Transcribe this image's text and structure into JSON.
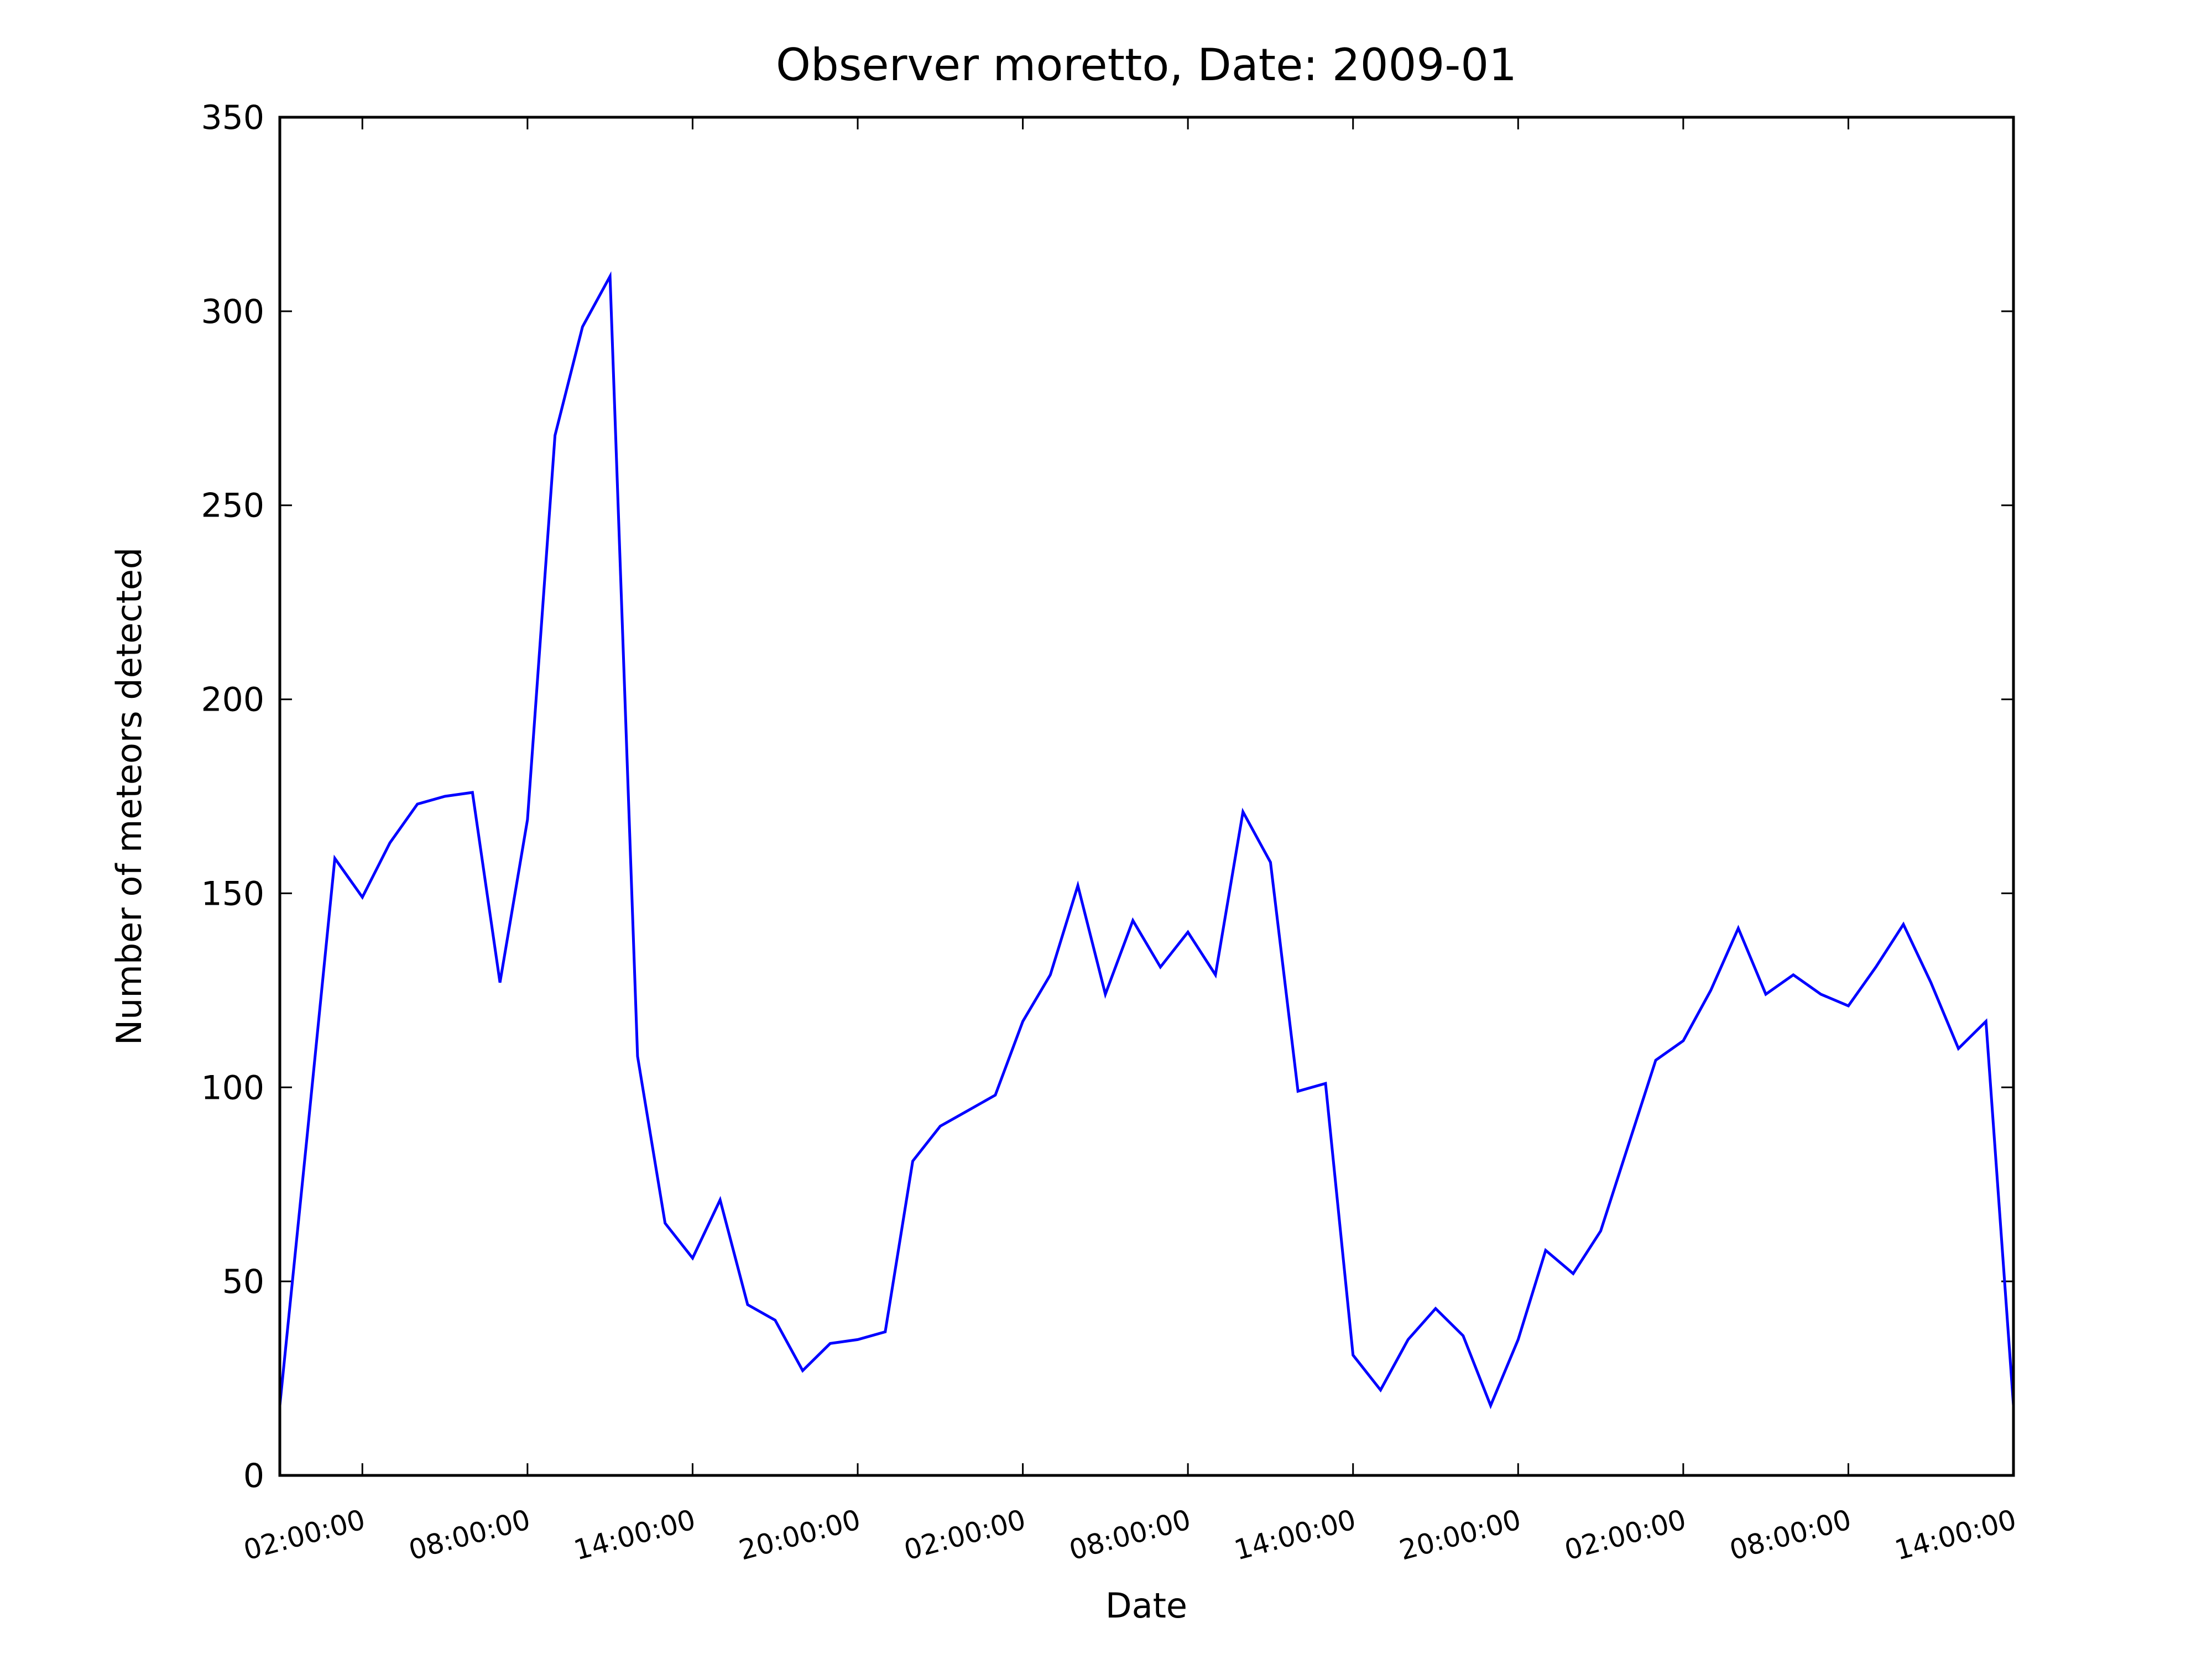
{
  "chart_data": {
    "type": "line",
    "title": "Observer moretto, Date: 2009-01",
    "xlabel": "Date",
    "ylabel": "Number of meteors detected",
    "categories": [
      null,
      null,
      null,
      "02:00:00",
      null,
      null,
      null,
      null,
      null,
      "08:00:00",
      null,
      null,
      null,
      null,
      null,
      "14:00:00",
      null,
      null,
      null,
      null,
      null,
      "20:00:00",
      null,
      null,
      null,
      null,
      null,
      "02:00:00",
      null,
      null,
      null,
      null,
      null,
      "08:00:00",
      null,
      null,
      null,
      null,
      null,
      "14:00:00",
      null,
      null,
      null,
      null,
      null,
      "20:00:00",
      null,
      null,
      null,
      null,
      null,
      "02:00:00",
      null,
      null,
      null,
      null,
      null,
      "08:00:00",
      null,
      null,
      null,
      null,
      null,
      "14:00:00"
    ],
    "values": [
      18,
      88,
      159,
      149,
      163,
      173,
      175,
      176,
      127,
      169,
      268,
      296,
      309,
      108,
      65,
      56,
      71,
      44,
      40,
      27,
      34,
      35,
      37,
      81,
      90,
      94,
      98,
      117,
      129,
      152,
      124,
      143,
      131,
      140,
      129,
      171,
      158,
      99,
      101,
      31,
      22,
      35,
      43,
      36,
      18,
      35,
      58,
      52,
      63,
      85,
      107,
      112,
      125,
      141,
      124,
      129,
      124,
      121,
      131,
      142,
      127,
      110,
      117,
      18
    ],
    "color": "#0000ff",
    "ylim": [
      0,
      350
    ],
    "yticks": [
      0,
      50,
      100,
      150,
      200,
      250,
      300,
      350
    ]
  }
}
